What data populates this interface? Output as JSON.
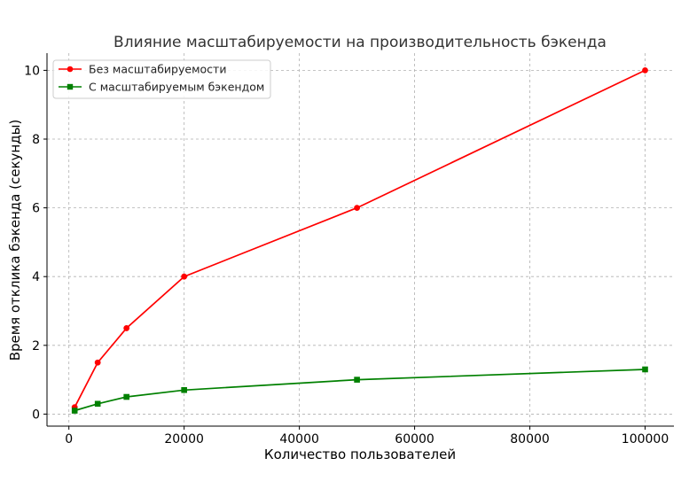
{
  "chart_data": {
    "type": "line",
    "title": "Влияние масштабируемости на производительность бэкенда",
    "xlabel": "Количество пользователей",
    "ylabel": "Время отклика бэкенда (секунды)",
    "x": [
      1000,
      5000,
      10000,
      20000,
      50000,
      100000
    ],
    "xlim": [
      -3800,
      105000
    ],
    "ylim": [
      -0.35,
      10.5
    ],
    "xticks": [
      0,
      20000,
      40000,
      60000,
      80000,
      100000
    ],
    "xtick_labels": [
      "0",
      "20000",
      "40000",
      "60000",
      "80000",
      "100000"
    ],
    "yticks": [
      0,
      2,
      4,
      6,
      8,
      10
    ],
    "ytick_labels": [
      "0",
      "2",
      "4",
      "6",
      "8",
      "10"
    ],
    "grid": true,
    "legend_position": "top-left",
    "series": [
      {
        "name": "Без масштабируемости",
        "values": [
          0.2,
          1.5,
          2.5,
          4.0,
          6.0,
          10.0
        ],
        "color": "#ff0000",
        "marker": "circle"
      },
      {
        "name": "С масштабируемым бэкендом",
        "values": [
          0.1,
          0.3,
          0.5,
          0.7,
          1.0,
          1.3
        ],
        "color": "#008000",
        "marker": "square"
      }
    ]
  }
}
